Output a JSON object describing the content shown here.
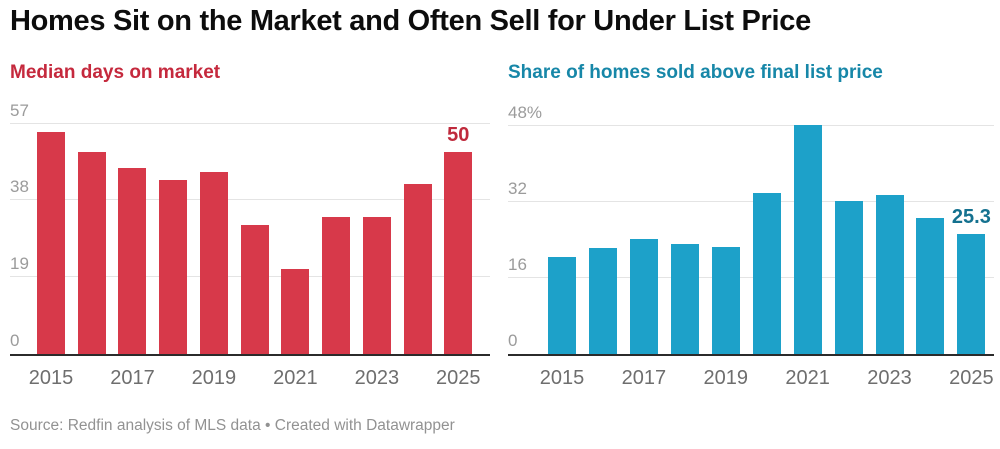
{
  "title": "Homes Sit on the Market and Often Sell for Under List Price",
  "source": "Source: Redfin analysis of MLS data • Created with Datawrapper",
  "colors": {
    "red_bar": "#d7394a",
    "red_accent": "#c5293d",
    "red_value_label": "#bf2a3c",
    "blue_bar": "#1da1c9",
    "blue_accent": "#1787a8",
    "blue_value_label": "#14718f",
    "axis_tick_gray": "#9b9b9b",
    "xaxis_gray": "#6e6e6e",
    "gridline_gray": "#e4e4e4",
    "baseline_dark": "#2b2b2b",
    "title_black": "#0d0d0d",
    "source_gray": "#929292"
  },
  "chart_data": [
    {
      "type": "bar",
      "title": "Median days on market",
      "categories": [
        "2015",
        "2016",
        "2017",
        "2018",
        "2019",
        "2020",
        "2021",
        "2022",
        "2023",
        "2024",
        "2025"
      ],
      "values": [
        55,
        50,
        46,
        43,
        45,
        32,
        21,
        34,
        34,
        42,
        50
      ],
      "ylim": [
        0,
        57
      ],
      "yticks": [
        0,
        19,
        38,
        57
      ],
      "ytick_labels": [
        "0",
        "19",
        "38",
        "57"
      ],
      "xtick_labels": [
        "2015",
        "2017",
        "2019",
        "2021",
        "2023",
        "2025"
      ],
      "xtick_bar_indices": [
        0,
        2,
        4,
        6,
        8,
        10
      ],
      "last_value_label": "50",
      "xlabel": "",
      "ylabel": "",
      "grid": true,
      "legend": "none",
      "bar_color": "#d7394a",
      "title_color": "#c5293d",
      "value_label_color": "#bf2a3c"
    },
    {
      "type": "bar",
      "title": "Share of homes sold above final list price",
      "categories": [
        "2015",
        "2016",
        "2017",
        "2018",
        "2019",
        "2020",
        "2021",
        "2022",
        "2023",
        "2024",
        "2025"
      ],
      "values": [
        20.4,
        22.3,
        24.2,
        23.2,
        22.5,
        33.9,
        48.1,
        32.2,
        33.4,
        28.5,
        25.3
      ],
      "ylim": [
        0,
        48
      ],
      "yticks": [
        0,
        16,
        32,
        48
      ],
      "ytick_labels": [
        "0",
        "16",
        "32",
        "48%"
      ],
      "xtick_labels": [
        "2015",
        "2017",
        "2019",
        "2021",
        "2023",
        "2025"
      ],
      "xtick_bar_indices": [
        0,
        2,
        4,
        6,
        8,
        10
      ],
      "last_value_label": "25.3",
      "xlabel": "",
      "ylabel": "",
      "grid": true,
      "legend": "none",
      "bar_color": "#1da1c9",
      "title_color": "#1787a8",
      "value_label_color": "#14718f"
    }
  ]
}
